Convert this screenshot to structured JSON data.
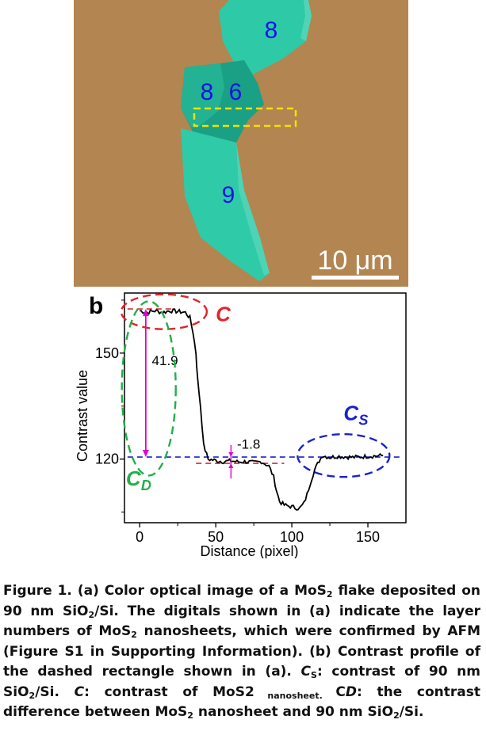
{
  "panel_a": {
    "layer_numbers": [
      "8",
      "8",
      "6",
      "9"
    ],
    "scale_bar_label": "10 μm",
    "colors": {
      "substrate": "#b38550",
      "flake_light": "#2ec9a6",
      "flake_dark": "#1aa085",
      "label": "#1414e6",
      "dashed_box": "#f2e200"
    }
  },
  "chart_data": {
    "type": "line",
    "panel_label": "b",
    "xlabel": "Distance (pixel)",
    "ylabel": "Contrast value",
    "x_ticks": [
      "0",
      "50",
      "100",
      "150"
    ],
    "y_ticks": [
      "120",
      "150"
    ],
    "xlim": [
      -10,
      175
    ],
    "ylim": [
      102,
      167
    ],
    "series": [
      {
        "x": [
          0,
          5,
          10,
          15,
          20,
          25,
          30,
          33,
          35,
          37,
          38,
          40,
          42,
          45,
          50,
          55,
          60,
          65,
          70,
          75,
          80,
          85,
          88,
          90,
          92,
          95,
          100,
          105,
          108,
          110,
          112,
          115,
          118,
          120,
          125,
          130,
          140,
          150,
          160
        ],
        "y": [
          162,
          161.5,
          162,
          161.5,
          162,
          161.8,
          161.5,
          160,
          156,
          150,
          143,
          135,
          124,
          120,
          119.6,
          119.3,
          119.5,
          119.2,
          119.3,
          119,
          119.3,
          118,
          115,
          111,
          108,
          107,
          106.5,
          106,
          107.5,
          110,
          113,
          117,
          119.5,
          121,
          120.5,
          120.8,
          120.5,
          120.8,
          121
        ]
      }
    ],
    "annotations": {
      "c_label": "C",
      "cs_label": "C",
      "cs_sub": "S",
      "cd_label": "C",
      "cd_sub": "D",
      "diff_value": "41.9",
      "small_diff": "-1.8",
      "substrate_level": 120.6,
      "flake_level": 162.5,
      "second_level": 118.8
    },
    "colors": {
      "curve": "#000000",
      "red": "#e0262a",
      "green": "#21b04b",
      "blue": "#1a22c8",
      "magenta": "#e000d0"
    }
  },
  "caption": {
    "figure_label": "Figure 1.",
    "segments": [
      " (a) Color optical image of a MoS",
      "2",
      " flake deposited on 90 nm SiO",
      "2",
      "/Si. The digitals shown in (a) indicate the layer numbers of MoS",
      "2",
      " nanosheets, which were confirmed by AFM (Figure S1 in Supporting Information). (b) Contrast profile of the dashed rectangle shown in (a). ",
      "C",
      "S",
      ": contrast of 90 nm SiO",
      "2",
      "/Si. ",
      "C",
      ": contrast of MoS",
      "2",
      " nanosheet. ",
      "C",
      "D",
      ": the contrast difference between MoS",
      "2",
      " nanosheet and 90 nm SiO",
      "2",
      "/Si."
    ]
  }
}
